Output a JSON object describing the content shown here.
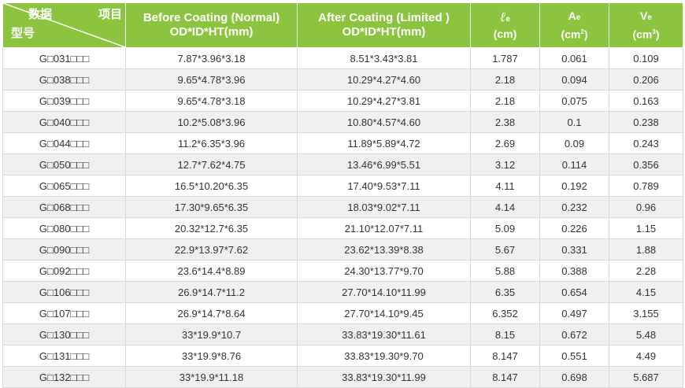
{
  "header": {
    "corner_top_left": "数据",
    "corner_top_right": "项目",
    "corner_bottom": "型号",
    "before_line1": "Before Coating (Normal)",
    "before_line2": "OD*ID*HT(mm)",
    "after_line1": "After Coating (Limited )",
    "after_line2": "OD*ID*HT(mm)",
    "le_symbol": "ℓ",
    "le_sub": "e",
    "le_unit": "(cm)",
    "ae_symbol": "A",
    "ae_sub": "e",
    "ae_unit": "(cm",
    "ae_exp": "2",
    "ae_close": ")",
    "ve_symbol": "V",
    "ve_sub": "e",
    "ve_unit": "(cm",
    "ve_exp": "3",
    "ve_close": ")"
  },
  "rows": [
    {
      "model": "G□031□□□",
      "before": "7.87*3.96*3.18",
      "after": "8.51*3.43*3.81",
      "le": "1.787",
      "ae": "0.061",
      "ve": "0.109"
    },
    {
      "model": "G□038□□□",
      "before": "9.65*4.78*3.96",
      "after": "10.29*4.27*4.60",
      "le": "2.18",
      "ae": "0.094",
      "ve": "0.206"
    },
    {
      "model": "G□039□□□",
      "before": "9.65*4.78*3.18",
      "after": "10.29*4.27*3.81",
      "le": "2.18",
      "ae": "0.075",
      "ve": "0.163"
    },
    {
      "model": "G□040□□□",
      "before": "10.2*5.08*3.96",
      "after": "10.80*4.57*4.60",
      "le": "2.38",
      "ae": "0.1",
      "ve": "0.238"
    },
    {
      "model": "G□044□□□",
      "before": "11.2*6.35*3.96",
      "after": "11.89*5.89*4.72",
      "le": "2.69",
      "ae": "0.09",
      "ve": "0.243"
    },
    {
      "model": "G□050□□□",
      "before": "12.7*7.62*4.75",
      "after": "13.46*6.99*5.51",
      "le": "3.12",
      "ae": "0.114",
      "ve": "0.356"
    },
    {
      "model": "G□065□□□",
      "before": "16.5*10.20*6.35",
      "after": "17.40*9.53*7.11",
      "le": "4.11",
      "ae": "0.192",
      "ve": "0.789"
    },
    {
      "model": "G□068□□□",
      "before": "17.30*9.65*6.35",
      "after": "18.03*9.02*7.11",
      "le": "4.14",
      "ae": "0.232",
      "ve": "0.96"
    },
    {
      "model": "G□080□□□",
      "before": "20.32*12.7*6.35",
      "after": "21.10*12.07*7.11",
      "le": "5.09",
      "ae": "0.226",
      "ve": "1.15"
    },
    {
      "model": "G□090□□□",
      "before": "22.9*13.97*7.62",
      "after": "23.62*13.39*8.38",
      "le": "5.67",
      "ae": "0.331",
      "ve": "1.88"
    },
    {
      "model": "G□092□□□",
      "before": "23.6*14.4*8.89",
      "after": "24.30*13.77*9.70",
      "le": "5.88",
      "ae": "0.388",
      "ve": "2.28"
    },
    {
      "model": "G□106□□□",
      "before": "26.9*14.7*11.2",
      "after": "27.70*14.10*11.99",
      "le": "6.35",
      "ae": "0.654",
      "ve": "4.15"
    },
    {
      "model": "G□107□□□",
      "before": "26.9*14.7*8.64",
      "after": "27.70*14.10*9.45",
      "le": "6.352",
      "ae": "0.497",
      "ve": "3.155"
    },
    {
      "model": "G□130□□□",
      "before": "33*19.9*10.7",
      "after": "33.83*19.30*11.61",
      "le": "8.15",
      "ae": "0.672",
      "ve": "5.48"
    },
    {
      "model": "G□131□□□",
      "before": "33*19.9*8.76",
      "after": "33.83*19.30*9.70",
      "le": "8.147",
      "ae": "0.551",
      "ve": "4.49"
    },
    {
      "model": "G□132□□□",
      "before": "33*19.9*11.18",
      "after": "33.83*19.30*11.99",
      "le": "8.147",
      "ae": "0.698",
      "ve": "5.687"
    }
  ]
}
